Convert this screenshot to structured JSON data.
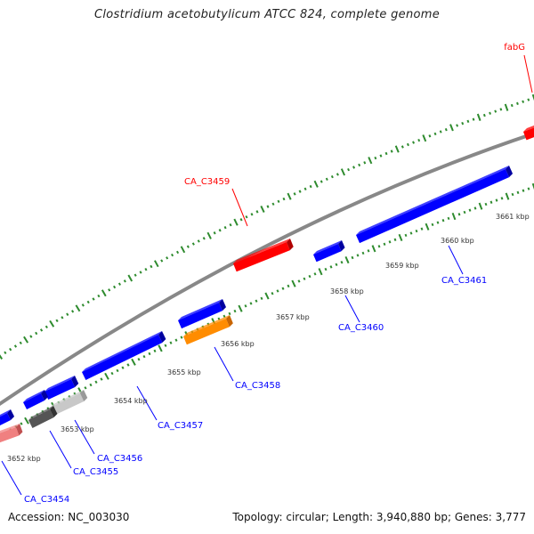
{
  "header": {
    "title": "Clostridium acetobutylicum ATCC 824, complete genome"
  },
  "footer": {
    "accession": "Accession: NC_003030",
    "topology": "Topology: circular; Length: 3,940,880 bp; Genes: 3,777"
  },
  "colors": {
    "forward_gene": "#ff0000",
    "reverse_gene": "#0000ff",
    "orange_gene": "#ff8c00",
    "gray_dark": "#555555",
    "gray_light": "#c8c8c8",
    "pink_gene": "#f08080",
    "backbone": "#888888",
    "tick": "#2e8b2e"
  },
  "kbp_ticks": [
    "3652 kbp",
    "3653 kbp",
    "3654 kbp",
    "3655 kbp",
    "3656 kbp",
    "3657 kbp",
    "3658 kbp",
    "3659 kbp",
    "3660 kbp",
    "3661 kbp"
  ],
  "genes": [
    {
      "label": "fabG",
      "strand": "forward"
    },
    {
      "label": "CA_C3459",
      "strand": "forward"
    },
    {
      "label": "CA_C3461",
      "strand": "reverse"
    },
    {
      "label": "CA_C3460",
      "strand": "reverse"
    },
    {
      "label": "CA_C3458",
      "strand": "reverse"
    },
    {
      "label": "CA_C3457",
      "strand": "reverse"
    },
    {
      "label": "CA_C3456",
      "strand": "reverse"
    },
    {
      "label": "CA_C3455",
      "strand": "reverse"
    },
    {
      "label": "CA_C3454",
      "strand": "reverse"
    }
  ]
}
